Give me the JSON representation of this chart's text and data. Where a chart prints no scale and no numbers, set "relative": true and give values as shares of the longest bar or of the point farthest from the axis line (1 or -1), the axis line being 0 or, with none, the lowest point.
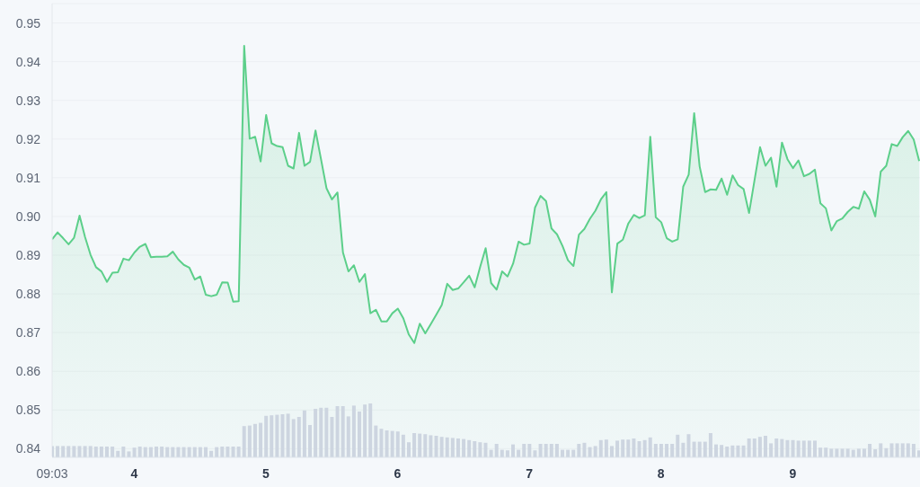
{
  "chart_data": [
    {
      "type": "area",
      "x": [
        "--03-03T09:03",
        "--03-03T10:03",
        "--03-03T11:03",
        "--03-03T12:03",
        "--03-03T13:03",
        "--03-03T14:03",
        "--03-03T15:03",
        "--03-03T16:03",
        "--03-03T17:03",
        "--03-03T18:03",
        "--03-03T19:03",
        "--03-03T20:03",
        "--03-03T21:03",
        "--03-03T22:03",
        "--03-03T23:03",
        "--03-04T00:03",
        "--03-04T01:03",
        "--03-04T02:03",
        "--03-04T03:03",
        "--03-04T04:03",
        "--03-04T05:03",
        "--03-04T06:03",
        "--03-04T07:03",
        "--03-04T08:03",
        "--03-04T09:03",
        "--03-04T10:03",
        "--03-04T11:03",
        "--03-04T12:03",
        "--03-04T13:03",
        "--03-04T14:03",
        "--03-04T15:03",
        "--03-04T16:03",
        "--03-04T17:03",
        "--03-04T18:03",
        "--03-04T19:03",
        "--03-04T20:03",
        "--03-04T21:03",
        "--03-04T22:03",
        "--03-04T23:03",
        "--03-05T00:03",
        "--03-05T01:03",
        "--03-05T02:03",
        "--03-05T03:03",
        "--03-05T04:03",
        "--03-05T05:03",
        "--03-05T06:03",
        "--03-05T07:03",
        "--03-05T08:03",
        "--03-05T09:03",
        "--03-05T10:03",
        "--03-05T11:03",
        "--03-05T12:03",
        "--03-05T13:03",
        "--03-05T14:03",
        "--03-05T15:03",
        "--03-05T16:03",
        "--03-05T17:03",
        "--03-05T18:03",
        "--03-05T19:03",
        "--03-05T20:03",
        "--03-05T21:03",
        "--03-05T22:03",
        "--03-05T23:03",
        "--03-06T00:03",
        "--03-06T01:03",
        "--03-06T02:03",
        "--03-06T03:03",
        "--03-06T04:03",
        "--03-06T05:03",
        "--03-06T06:03",
        "--03-06T07:03",
        "--03-06T08:03",
        "--03-06T09:03",
        "--03-06T10:03",
        "--03-06T11:03",
        "--03-06T12:03",
        "--03-06T13:03",
        "--03-06T14:03",
        "--03-06T15:03",
        "--03-06T16:03",
        "--03-06T17:03",
        "--03-06T18:03",
        "--03-06T19:03",
        "--03-06T20:03",
        "--03-06T21:03",
        "--03-06T22:03",
        "--03-06T23:03",
        "--03-07T00:03",
        "--03-07T01:03",
        "--03-07T02:03",
        "--03-07T03:03",
        "--03-07T04:03",
        "--03-07T05:03",
        "--03-07T06:03",
        "--03-07T07:03",
        "--03-07T08:03",
        "--03-07T09:03",
        "--03-07T10:03",
        "--03-07T11:03",
        "--03-07T12:03",
        "--03-07T13:03",
        "--03-07T14:03",
        "--03-07T15:03",
        "--03-07T16:03",
        "--03-07T17:03",
        "--03-07T18:03",
        "--03-07T19:03",
        "--03-07T20:03",
        "--03-07T21:03",
        "--03-07T22:03",
        "--03-07T23:03",
        "--03-08T00:03",
        "--03-08T01:03",
        "--03-08T02:03",
        "--03-08T03:03",
        "--03-08T04:03",
        "--03-08T05:03",
        "--03-08T06:03",
        "--03-08T07:03",
        "--03-08T08:03",
        "--03-08T09:03",
        "--03-08T10:03",
        "--03-08T11:03",
        "--03-08T12:03",
        "--03-08T13:03",
        "--03-08T14:03",
        "--03-08T15:03",
        "--03-08T16:03",
        "--03-08T17:03",
        "--03-08T18:03",
        "--03-08T19:03",
        "--03-08T20:03",
        "--03-08T21:03",
        "--03-08T22:03",
        "--03-08T23:03",
        "--03-09T00:03",
        "--03-09T01:03",
        "--03-09T02:03",
        "--03-09T03:03",
        "--03-09T04:03",
        "--03-09T05:03",
        "--03-09T06:03",
        "--03-09T07:03",
        "--03-09T08:03",
        "--03-09T09:03",
        "--03-09T10:03",
        "--03-09T11:03",
        "--03-09T12:03",
        "--03-09T13:03",
        "--03-09T14:03",
        "--03-09T15:03",
        "--03-09T16:03",
        "--03-09T17:03",
        "--03-09T18:03",
        "--03-09T19:03",
        "--03-09T20:03",
        "--03-09T21:03",
        "--03-09T22:03",
        "--03-09T23:03"
      ],
      "series": [
        {
          "color": "#5ccf8a",
          "values": [
            0.8941,
            0.8959,
            0.8944,
            0.8928,
            0.8945,
            0.9002,
            0.8947,
            0.8901,
            0.8869,
            0.8858,
            0.8831,
            0.8855,
            0.8856,
            0.8891,
            0.8887,
            0.8907,
            0.8922,
            0.8929,
            0.8895,
            0.8896,
            0.8896,
            0.8897,
            0.8909,
            0.8889,
            0.8875,
            0.8868,
            0.8837,
            0.8845,
            0.8798,
            0.8794,
            0.8798,
            0.883,
            0.8829,
            0.878,
            0.8781,
            0.9441,
            0.9201,
            0.9206,
            0.9142,
            0.9262,
            0.9189,
            0.9182,
            0.9179,
            0.9131,
            0.9124,
            0.9216,
            0.9131,
            0.9141,
            0.9222,
            0.9148,
            0.9073,
            0.9044,
            0.9062,
            0.8907,
            0.8858,
            0.8874,
            0.8831,
            0.8851,
            0.875,
            0.8759,
            0.8729,
            0.8729,
            0.875,
            0.8762,
            0.8737,
            0.8695,
            0.8673,
            0.8723,
            0.8698,
            0.8722,
            0.8746,
            0.8771,
            0.8826,
            0.881,
            0.8814,
            0.883,
            0.8847,
            0.8817,
            0.887,
            0.8918,
            0.8828,
            0.8811,
            0.8858,
            0.8845,
            0.8878,
            0.8935,
            0.8927,
            0.893,
            0.9023,
            0.9053,
            0.904,
            0.8969,
            0.8954,
            0.8924,
            0.8887,
            0.8872,
            0.8953,
            0.8968,
            0.8994,
            0.9015,
            0.9044,
            0.9063,
            0.8804,
            0.893,
            0.894,
            0.8982,
            0.9004,
            0.8996,
            0.9003,
            0.9206,
            0.8998,
            0.8985,
            0.8944,
            0.8935,
            0.8941,
            0.9077,
            0.9108,
            0.9267,
            0.9129,
            0.9063,
            0.907,
            0.9069,
            0.9098,
            0.9056,
            0.9106,
            0.9081,
            0.9071,
            0.9009,
            0.9094,
            0.9179,
            0.9131,
            0.9152,
            0.9077,
            0.9191,
            0.9148,
            0.9125,
            0.9145,
            0.9104,
            0.911,
            0.9121,
            0.9034,
            0.9021,
            0.8964,
            0.8988,
            0.8995,
            0.9012,
            0.9025,
            0.902,
            0.9065,
            0.9043,
            0.9,
            0.9116,
            0.9131,
            0.9187,
            0.9182,
            0.9205,
            0.9221,
            0.9199,
            0.9143
          ]
        }
      ],
      "xlim": [
        "--03-03T09:03",
        "--03-09T23:12"
      ],
      "ylim": [
        0.838,
        0.955
      ],
      "yticks": [
        0.84,
        0.85,
        0.86,
        0.87,
        0.88,
        0.89,
        {
          "value": 0.9,
          "label": "0.90"
        },
        0.91,
        0.92,
        0.93,
        0.94,
        0.95
      ],
      "grid": "y",
      "tick_labels": "y",
      "marker": "none"
    },
    {
      "type": "bar",
      "relative": true,
      "x": [
        "--03-03T09:03",
        "--03-03T10:03",
        "--03-03T11:03",
        "--03-03T12:03",
        "--03-03T13:03",
        "--03-03T14:03",
        "--03-03T15:03",
        "--03-03T16:03",
        "--03-03T17:03",
        "--03-03T18:03",
        "--03-03T19:03",
        "--03-03T20:03",
        "--03-03T21:03",
        "--03-03T22:03",
        "--03-03T23:03",
        "--03-04T00:03",
        "--03-04T01:03",
        "--03-04T02:03",
        "--03-04T03:03",
        "--03-04T04:03",
        "--03-04T05:03",
        "--03-04T06:03",
        "--03-04T07:03",
        "--03-04T08:03",
        "--03-04T09:03",
        "--03-04T10:03",
        "--03-04T11:03",
        "--03-04T12:03",
        "--03-04T13:03",
        "--03-04T14:03",
        "--03-04T15:03",
        "--03-04T16:03",
        "--03-04T17:03",
        "--03-04T18:03",
        "--03-04T19:03",
        "--03-04T20:03",
        "--03-04T21:03",
        "--03-04T22:03",
        "--03-04T23:03",
        "--03-05T00:03",
        "--03-05T01:03",
        "--03-05T02:03",
        "--03-05T03:03",
        "--03-05T04:03",
        "--03-05T05:03",
        "--03-05T06:03",
        "--03-05T07:03",
        "--03-05T08:03",
        "--03-05T09:03",
        "--03-05T10:03",
        "--03-05T11:03",
        "--03-05T12:03",
        "--03-05T13:03",
        "--03-05T14:03",
        "--03-05T15:03",
        "--03-05T16:03",
        "--03-05T17:03",
        "--03-05T18:03",
        "--03-05T19:03",
        "--03-05T20:03",
        "--03-05T21:03",
        "--03-05T22:03",
        "--03-05T23:03",
        "--03-06T00:03",
        "--03-06T01:03",
        "--03-06T02:03",
        "--03-06T03:03",
        "--03-06T04:03",
        "--03-06T05:03",
        "--03-06T06:03",
        "--03-06T07:03",
        "--03-06T08:03",
        "--03-06T09:03",
        "--03-06T10:03",
        "--03-06T11:03",
        "--03-06T12:03",
        "--03-06T13:03",
        "--03-06T14:03",
        "--03-06T15:03",
        "--03-06T16:03",
        "--03-06T17:03",
        "--03-06T18:03",
        "--03-06T19:03",
        "--03-06T20:03",
        "--03-06T21:03",
        "--03-06T22:03",
        "--03-06T23:03",
        "--03-07T00:03",
        "--03-07T01:03",
        "--03-07T02:03",
        "--03-07T03:03",
        "--03-07T04:03",
        "--03-07T05:03",
        "--03-07T06:03",
        "--03-07T07:03",
        "--03-07T08:03",
        "--03-07T09:03",
        "--03-07T10:03",
        "--03-07T11:03",
        "--03-07T12:03",
        "--03-07T13:03",
        "--03-07T14:03",
        "--03-07T15:03",
        "--03-07T16:03",
        "--03-07T17:03",
        "--03-07T18:03",
        "--03-07T19:03",
        "--03-07T20:03",
        "--03-07T21:03",
        "--03-07T22:03",
        "--03-07T23:03",
        "--03-08T00:03",
        "--03-08T01:03",
        "--03-08T02:03",
        "--03-08T03:03",
        "--03-08T04:03",
        "--03-08T05:03",
        "--03-08T06:03",
        "--03-08T07:03",
        "--03-08T08:03",
        "--03-08T09:03",
        "--03-08T10:03",
        "--03-08T11:03",
        "--03-08T12:03",
        "--03-08T13:03",
        "--03-08T14:03",
        "--03-08T15:03",
        "--03-08T16:03",
        "--03-08T17:03",
        "--03-08T18:03",
        "--03-08T19:03",
        "--03-08T20:03",
        "--03-08T21:03",
        "--03-08T22:03",
        "--03-08T23:03",
        "--03-09T00:03",
        "--03-09T01:03",
        "--03-09T02:03",
        "--03-09T03:03",
        "--03-09T04:03",
        "--03-09T05:03",
        "--03-09T06:03",
        "--03-09T07:03",
        "--03-09T08:03",
        "--03-09T09:03",
        "--03-09T10:03",
        "--03-09T11:03",
        "--03-09T12:03",
        "--03-09T13:03",
        "--03-09T14:03",
        "--03-09T15:03",
        "--03-09T16:03",
        "--03-09T17:03",
        "--03-09T18:03",
        "--03-09T19:03",
        "--03-09T20:03",
        "--03-09T21:03",
        "--03-09T22:03",
        "--03-09T23:03"
      ],
      "values": [
        0.21,
        0.21,
        0.21,
        0.21,
        0.21,
        0.21,
        0.21,
        0.21,
        0.2,
        0.2,
        0.2,
        0.2,
        0.12,
        0.2,
        0.11,
        0.18,
        0.2,
        0.19,
        0.19,
        0.2,
        0.2,
        0.19,
        0.19,
        0.19,
        0.19,
        0.19,
        0.19,
        0.19,
        0.19,
        0.12,
        0.19,
        0.2,
        0.2,
        0.2,
        0.2,
        0.58,
        0.59,
        0.62,
        0.64,
        0.77,
        0.78,
        0.79,
        0.8,
        0.81,
        0.71,
        0.75,
        0.87,
        0.6,
        0.9,
        0.92,
        0.92,
        0.75,
        0.95,
        0.95,
        0.76,
        0.96,
        0.85,
        0.98,
        1,
        0.59,
        0.53,
        0.5,
        0.49,
        0.48,
        0.42,
        0.28,
        0.45,
        0.44,
        0.43,
        0.41,
        0.4,
        0.38,
        0.37,
        0.36,
        0.35,
        0.34,
        0.32,
        0.3,
        0.28,
        0.27,
        0.14,
        0.25,
        0.14,
        0.13,
        0.24,
        0.14,
        0.25,
        0.25,
        0.13,
        0.25,
        0.25,
        0.25,
        0.25,
        0.14,
        0.14,
        0.14,
        0.25,
        0.27,
        0.19,
        0.21,
        0.32,
        0.33,
        0.21,
        0.31,
        0.33,
        0.33,
        0.35,
        0.3,
        0.32,
        0.37,
        0.25,
        0.25,
        0.25,
        0.25,
        0.42,
        0.27,
        0.43,
        0.29,
        0.29,
        0.29,
        0.45,
        0.24,
        0.23,
        0.2,
        0.22,
        0.22,
        0.22,
        0.35,
        0.35,
        0.38,
        0.4,
        0.26,
        0.35,
        0.34,
        0.32,
        0.32,
        0.31,
        0.31,
        0.31,
        0.31,
        0.18,
        0.18,
        0.16,
        0.16,
        0.16,
        0.16,
        0.14,
        0.16,
        0.16,
        0.25,
        0.15,
        0.26,
        0.17,
        0.26,
        0.26,
        0.26,
        0.26,
        0.25,
        0.13
      ],
      "color": "#cdd5e0",
      "xlim": [
        "--03-03T09:03",
        "--03-09T23:12"
      ],
      "xticks": [
        {
          "value": "--03-03T09:03",
          "label": "09:03"
        },
        {
          "value": "--03-04",
          "label": "4"
        },
        {
          "value": "--03-05",
          "label": "5"
        },
        {
          "value": "--03-06",
          "label": "6"
        },
        {
          "value": "--03-07",
          "label": "7"
        },
        {
          "value": "--03-08",
          "label": "8"
        },
        {
          "value": "--03-09",
          "label": "9"
        }
      ],
      "tick_labels": "x"
    }
  ]
}
